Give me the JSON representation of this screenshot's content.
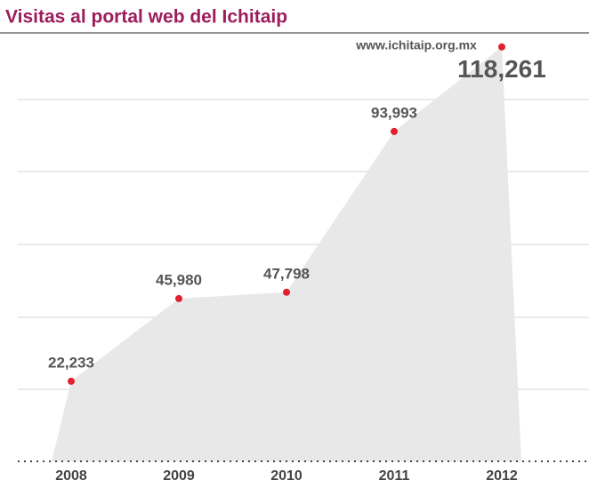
{
  "chart_data": {
    "type": "area",
    "title": "Visitas al portal web del Ichitaip",
    "subtitle": "www.ichitaip.org.mx",
    "categories": [
      "2008",
      "2009",
      "2010",
      "2011",
      "2012"
    ],
    "values": [
      22233,
      45980,
      47798,
      93993,
      118261
    ],
    "value_labels": [
      "22,233",
      "45,980",
      "47,798",
      "93,993",
      "118,261"
    ],
    "ylim": [
      0,
      120000
    ],
    "color": "#e8e8e8",
    "point_color": "#e0202e",
    "title_color": "#9b1d5c"
  }
}
